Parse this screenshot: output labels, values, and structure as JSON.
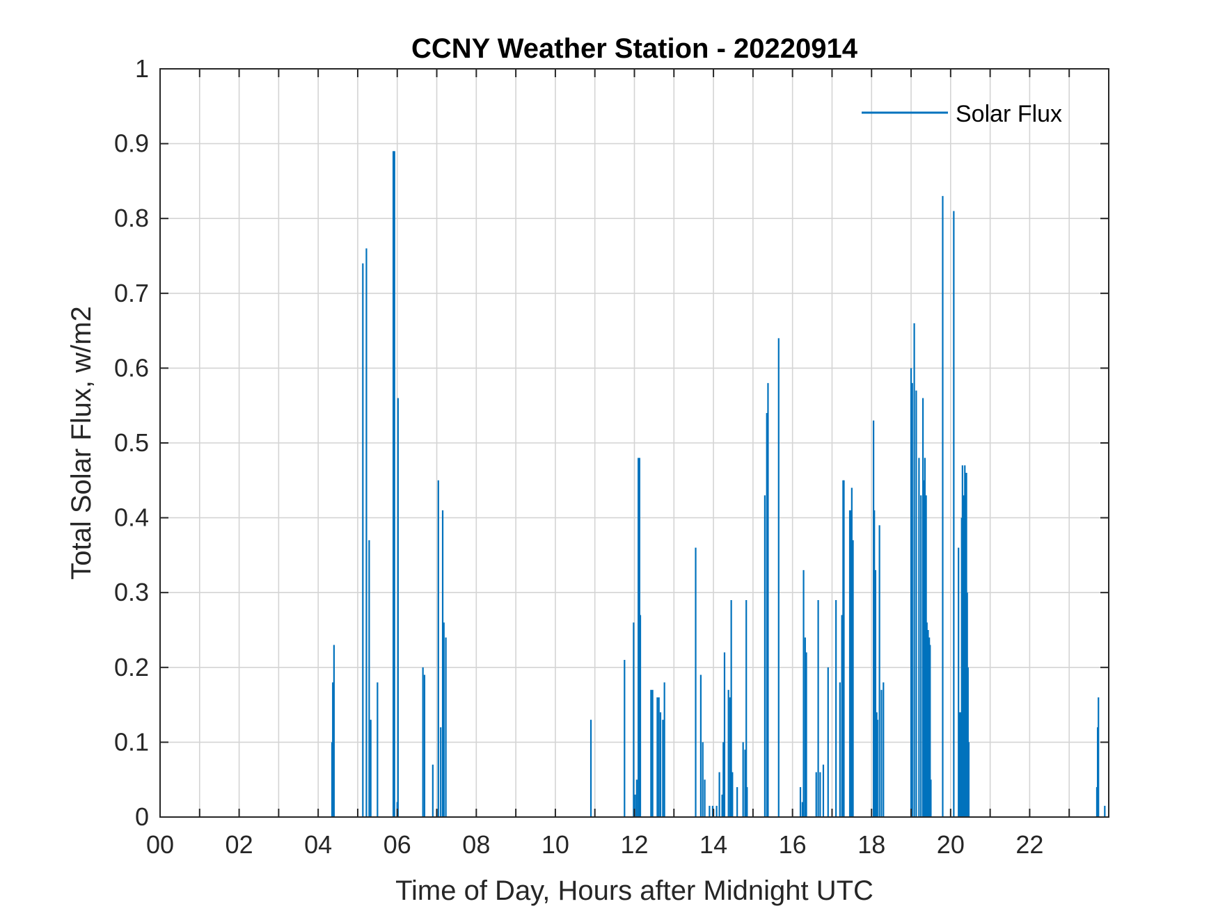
{
  "chart_data": {
    "type": "bar",
    "title": "CCNY Weather Station - 20220914",
    "xlabel": "Time of Day, Hours after Midnight UTC",
    "ylabel": "Total Solar Flux, w/m2",
    "xlim": [
      0,
      24
    ],
    "ylim": [
      0,
      1
    ],
    "x_ticks": [
      0,
      2,
      4,
      6,
      8,
      10,
      12,
      14,
      16,
      18,
      20,
      22
    ],
    "x_tick_labels": [
      "00",
      "02",
      "04",
      "06",
      "08",
      "10",
      "12",
      "14",
      "16",
      "18",
      "20",
      "22"
    ],
    "y_ticks": [
      0,
      0.1,
      0.2,
      0.3,
      0.4,
      0.5,
      0.6,
      0.7,
      0.8,
      0.9,
      1
    ],
    "y_tick_labels": [
      "0",
      "0.1",
      "0.2",
      "0.3",
      "0.4",
      "0.5",
      "0.6",
      "0.7",
      "0.8",
      "0.9",
      "1"
    ],
    "grid": true,
    "legend_position": "top-right",
    "series": [
      {
        "name": "Solar Flux",
        "color": "#0072BD",
        "points": [
          [
            4.35,
            0.1
          ],
          [
            4.37,
            0.18
          ],
          [
            4.4,
            0.23
          ],
          [
            5.13,
            0.74
          ],
          [
            5.22,
            0.76
          ],
          [
            5.29,
            0.37
          ],
          [
            5.33,
            0.13
          ],
          [
            5.5,
            0.18
          ],
          [
            5.9,
            0.89
          ],
          [
            5.93,
            0.89
          ],
          [
            6.0,
            0.02
          ],
          [
            6.02,
            0.56
          ],
          [
            6.65,
            0.2
          ],
          [
            6.69,
            0.19
          ],
          [
            6.9,
            0.07
          ],
          [
            7.0,
            0.01
          ],
          [
            7.04,
            0.45
          ],
          [
            7.1,
            0.12
          ],
          [
            7.15,
            0.41
          ],
          [
            7.18,
            0.26
          ],
          [
            7.23,
            0.24
          ],
          [
            10.9,
            0.13
          ],
          [
            11.75,
            0.21
          ],
          [
            11.98,
            0.26
          ],
          [
            12.02,
            0.03
          ],
          [
            12.06,
            0.05
          ],
          [
            12.1,
            0.48
          ],
          [
            12.13,
            0.48
          ],
          [
            12.15,
            0.27
          ],
          [
            12.42,
            0.17
          ],
          [
            12.46,
            0.17
          ],
          [
            12.58,
            0.16
          ],
          [
            12.62,
            0.16
          ],
          [
            12.66,
            0.14
          ],
          [
            12.72,
            0.13
          ],
          [
            12.76,
            0.18
          ],
          [
            13.55,
            0.36
          ],
          [
            13.68,
            0.19
          ],
          [
            13.73,
            0.1
          ],
          [
            13.78,
            0.05
          ],
          [
            13.9,
            0.015
          ],
          [
            13.98,
            0.015
          ],
          [
            14.0,
            0.01
          ],
          [
            14.08,
            0.015
          ],
          [
            14.15,
            0.06
          ],
          [
            14.22,
            0.03
          ],
          [
            14.25,
            0.1
          ],
          [
            14.28,
            0.22
          ],
          [
            14.38,
            0.17
          ],
          [
            14.42,
            0.16
          ],
          [
            14.45,
            0.29
          ],
          [
            14.48,
            0.06
          ],
          [
            14.6,
            0.04
          ],
          [
            14.75,
            0.1
          ],
          [
            14.8,
            0.09
          ],
          [
            14.83,
            0.29
          ],
          [
            14.85,
            0.04
          ],
          [
            15.3,
            0.43
          ],
          [
            15.35,
            0.54
          ],
          [
            15.38,
            0.58
          ],
          [
            15.65,
            0.64
          ],
          [
            16.2,
            0.04
          ],
          [
            16.25,
            0.02
          ],
          [
            16.28,
            0.33
          ],
          [
            16.32,
            0.24
          ],
          [
            16.35,
            0.22
          ],
          [
            16.6,
            0.06
          ],
          [
            16.65,
            0.29
          ],
          [
            16.7,
            0.06
          ],
          [
            16.78,
            0.07
          ],
          [
            16.9,
            0.2
          ],
          [
            17.1,
            0.29
          ],
          [
            17.2,
            0.18
          ],
          [
            17.25,
            0.27
          ],
          [
            17.28,
            0.45
          ],
          [
            17.3,
            0.45
          ],
          [
            17.45,
            0.41
          ],
          [
            17.48,
            0.41
          ],
          [
            17.5,
            0.44
          ],
          [
            17.53,
            0.37
          ],
          [
            18.05,
            0.53
          ],
          [
            18.07,
            0.41
          ],
          [
            18.1,
            0.33
          ],
          [
            18.13,
            0.14
          ],
          [
            18.15,
            0.13
          ],
          [
            18.2,
            0.39
          ],
          [
            18.25,
            0.17
          ],
          [
            18.3,
            0.18
          ],
          [
            19.0,
            0.6
          ],
          [
            19.03,
            0.58
          ],
          [
            19.08,
            0.66
          ],
          [
            19.13,
            0.57
          ],
          [
            19.2,
            0.48
          ],
          [
            19.25,
            0.43
          ],
          [
            19.3,
            0.56
          ],
          [
            19.33,
            0.45
          ],
          [
            19.35,
            0.48
          ],
          [
            19.38,
            0.43
          ],
          [
            19.4,
            0.26
          ],
          [
            19.43,
            0.25
          ],
          [
            19.46,
            0.24
          ],
          [
            19.48,
            0.23
          ],
          [
            19.5,
            0.05
          ],
          [
            19.8,
            0.83
          ],
          [
            20.08,
            0.81
          ],
          [
            20.2,
            0.36
          ],
          [
            20.23,
            0.14
          ],
          [
            20.26,
            0.14
          ],
          [
            20.28,
            0.4
          ],
          [
            20.3,
            0.47
          ],
          [
            20.33,
            0.43
          ],
          [
            20.36,
            0.47
          ],
          [
            20.38,
            0.46
          ],
          [
            20.4,
            0.46
          ],
          [
            20.42,
            0.3
          ],
          [
            20.44,
            0.2
          ],
          [
            20.46,
            0.1
          ],
          [
            23.7,
            0.04
          ],
          [
            23.72,
            0.12
          ],
          [
            23.74,
            0.16
          ],
          [
            23.9,
            0.015
          ]
        ]
      }
    ]
  }
}
